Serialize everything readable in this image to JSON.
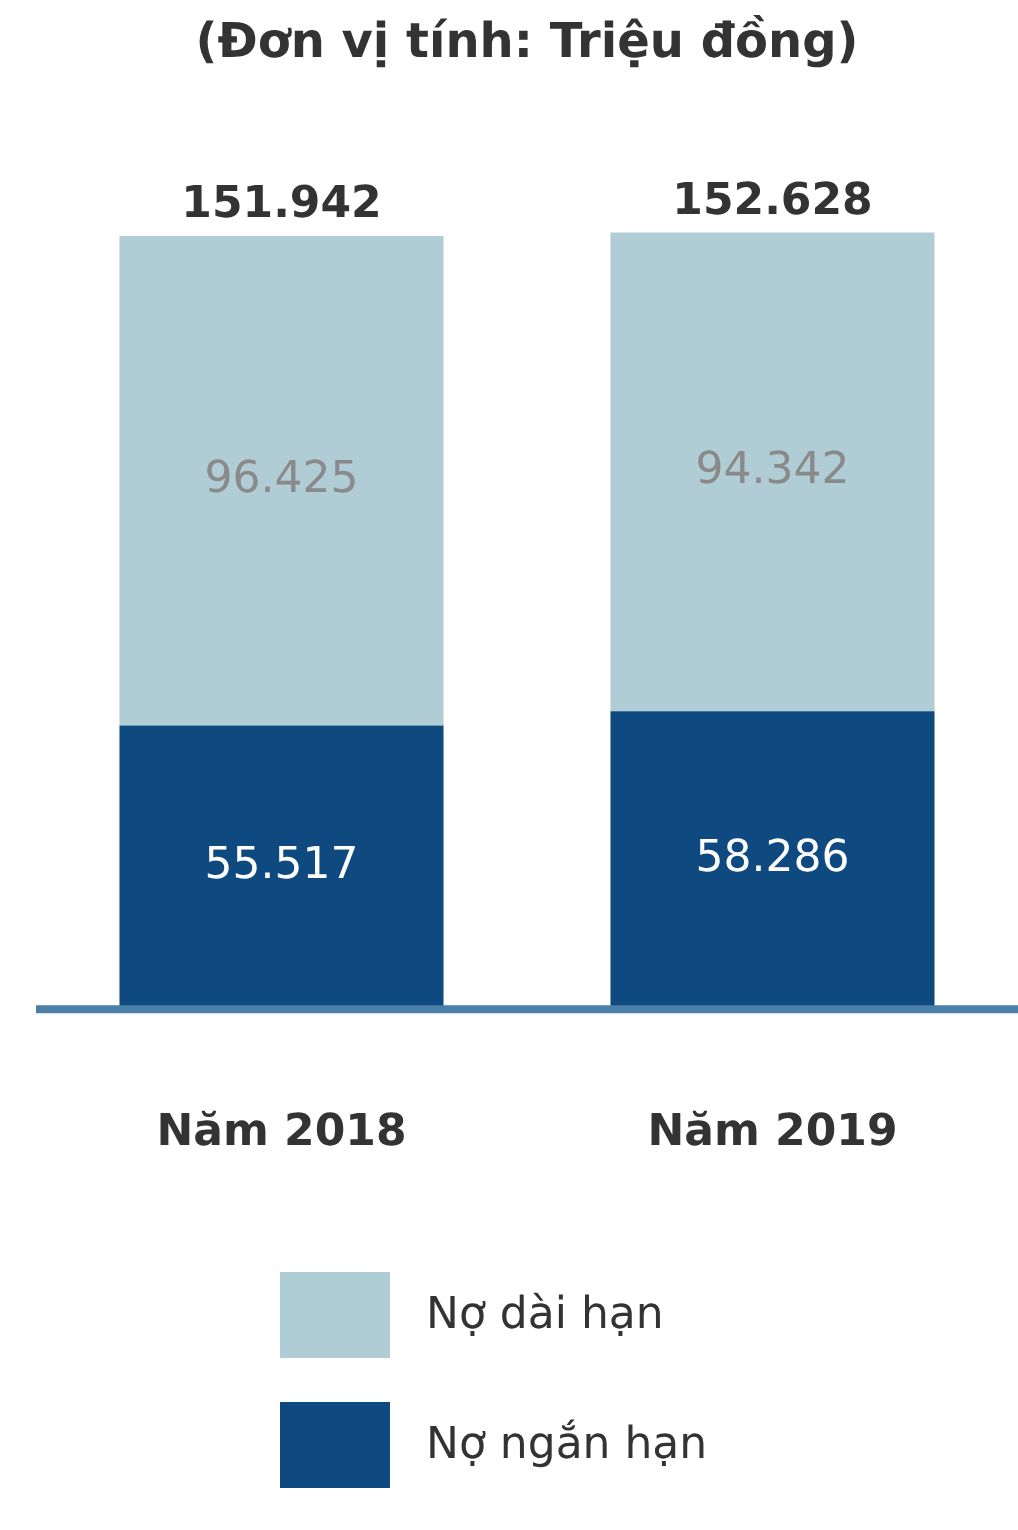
{
  "chart_data": {
    "type": "bar",
    "stacked": true,
    "title": "(Đơn vị tính: Triệu đồng)",
    "categories": [
      "Năm 2018",
      "Năm 2019"
    ],
    "series": [
      {
        "name": "Nợ ngắn hạn",
        "color": "#0e4a80",
        "values": [
          55517,
          58286
        ],
        "value_labels": [
          "55.517",
          "58.286"
        ]
      },
      {
        "name": "Nợ dài hạn",
        "color": "#b0cdd5",
        "values": [
          96425,
          94342
        ],
        "value_labels": [
          "96.425",
          "94.342"
        ]
      }
    ],
    "totals": [
      "151.942",
      "152.628"
    ],
    "legend": "bottom",
    "grid": false,
    "tick_labels": "x"
  }
}
